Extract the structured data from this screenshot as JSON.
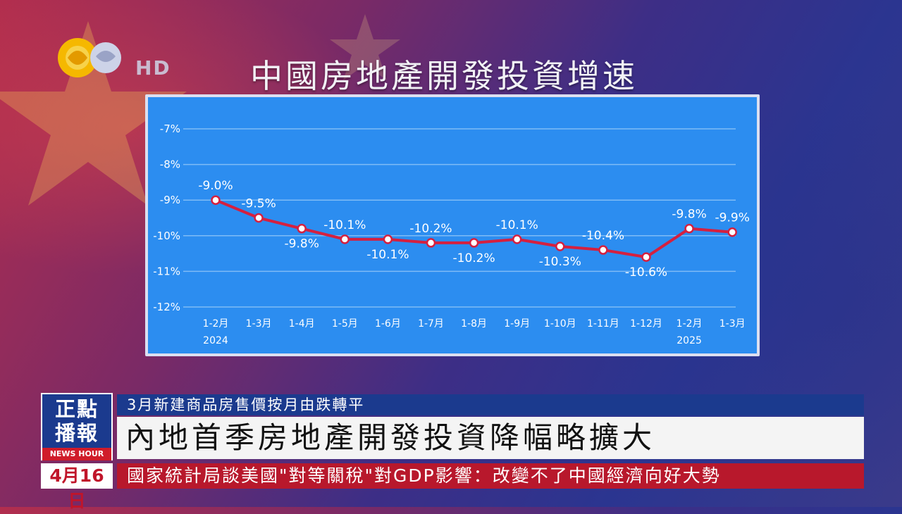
{
  "header": {
    "title": "中國房地產開發投資增速",
    "hd_label": "HD"
  },
  "chart_data": {
    "type": "line",
    "title": "中國房地產開發投資增速",
    "categories": [
      "1-2月",
      "1-3月",
      "1-4月",
      "1-5月",
      "1-6月",
      "1-7月",
      "1-8月",
      "1-9月",
      "1-10月",
      "1-11月",
      "1-12月",
      "1-2月",
      "1-3月"
    ],
    "year_labels": [
      {
        "index": 0,
        "text": "2024"
      },
      {
        "index": 11,
        "text": "2025"
      }
    ],
    "values": [
      -9.0,
      -9.5,
      -9.8,
      -10.1,
      -10.1,
      -10.2,
      -10.2,
      -10.1,
      -10.3,
      -10.4,
      -10.6,
      -9.8,
      -9.9
    ],
    "data_labels": [
      "-9.0%",
      "-9.5%",
      "-9.8%",
      "-10.1%",
      "-10.1%",
      "-10.2%",
      "-10.2%",
      "-10.1%",
      "-10.3%",
      "-10.4%",
      "-10.6%",
      "-9.8%",
      "-9.9%"
    ],
    "label_positions": [
      "above",
      "above",
      "below",
      "above",
      "below",
      "above",
      "below",
      "above",
      "below",
      "above",
      "below",
      "above",
      "above"
    ],
    "y_ticks": [
      "-7%",
      "-8%",
      "-9%",
      "-10%",
      "-11%",
      "-12%"
    ],
    "ylim": [
      -12,
      -7
    ],
    "grid": true,
    "colors": {
      "line": "#d5203f",
      "panel": "#2c8df0",
      "text": "#ffffff",
      "grid": "#7fbcf6"
    }
  },
  "ticker": {
    "brand_line1": "正點",
    "brand_line2": "播報",
    "brand_sub": "NEWS HOUR",
    "subhead": "3月新建商品房售價按月由跌轉平",
    "headline": "內地首季房地產開發投資降幅略擴大",
    "date": "4月16日",
    "crawl": "國家統計局談美國\"對等關稅\"對GDP影響：改變不了中國經濟向好大勢"
  }
}
